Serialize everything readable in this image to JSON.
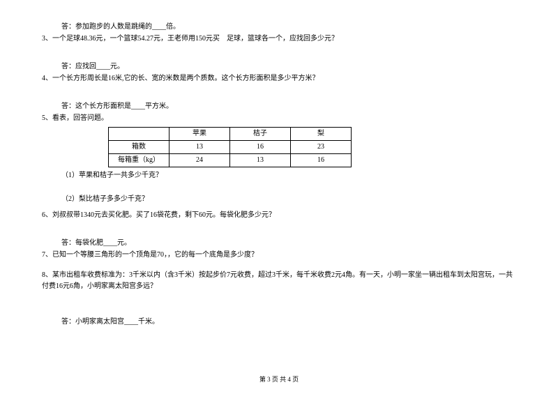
{
  "q2_answer": "答：参加跑步的人数是跳绳的____倍。",
  "q3_text": "3、一个足球48.36元，一个篮球54.27元，王老师用150元买　足球，篮球各一个，应找回多少元？",
  "q3_answer": "答：应找回____元。",
  "q4_text": "4、一个长方形周长是16米,它的长、宽的米数是两个质数。这个长方形面积是多少平方米？",
  "q4_answer": "答：这个长方形面积是____平方米。",
  "q5_text": "5、看表，回答问题。",
  "table": {
    "columns": [
      "",
      "苹果",
      "桔子",
      "梨"
    ],
    "rows": [
      [
        "箱数",
        "13",
        "16",
        "23"
      ],
      [
        "每箱重（kg）",
        "24",
        "13",
        "16"
      ]
    ]
  },
  "q5_1": "（1）苹果和桔子一共多少千克？",
  "q5_2": "（2）梨比桔子多多少千克？",
  "q6_text": "6、刘叔叔带1340元去买化肥。买了16袋花费，剩下60元。每袋化肥多少元？",
  "q6_answer": "答：每袋化肥____元。",
  "q7_text": "7、已知一个等腰三角形的一个顶角是70，，它的每一个底角是多少度？",
  "q8_text": "8、某市出租车收费标准为：3千米以内（含3千米）按起步价7元收费，超过3千米，每千米收费2元4角。有一天，小明一家坐一辆出租车到太阳宫玩，一共付费16元6角，小明家离太阳宫多远？",
  "q8_answer": "答：小明家离太阳宫____千米。",
  "footer": "第 3 页 共 4 页"
}
